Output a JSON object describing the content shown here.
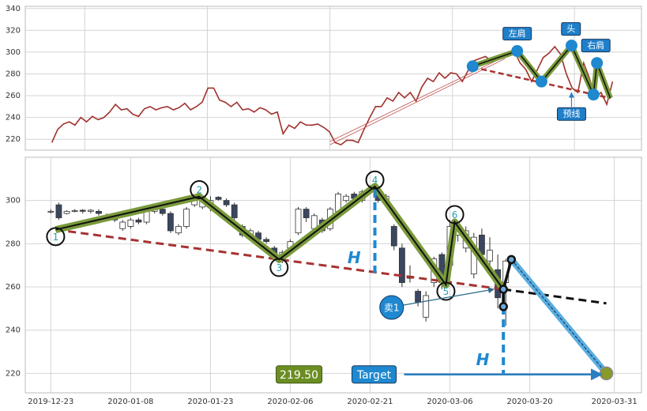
{
  "chart_data": [
    {
      "type": "line",
      "color": "#a0322e",
      "values": [
        217,
        229,
        234,
        236,
        233,
        240,
        236,
        241,
        238,
        240,
        245,
        252,
        247,
        248,
        243,
        241,
        248,
        250,
        247,
        249,
        250,
        247,
        249,
        253,
        247,
        250,
        254,
        267,
        267,
        256,
        254,
        250,
        254,
        247,
        248,
        245,
        249,
        247,
        243,
        245,
        225,
        233,
        230,
        236,
        233,
        233,
        234,
        231,
        227,
        217,
        215,
        219,
        219,
        217,
        229,
        240,
        250,
        250,
        258,
        255,
        263,
        258,
        263,
        255,
        268,
        276,
        273,
        281,
        276,
        281,
        280,
        273,
        283,
        292,
        294,
        296,
        292,
        296,
        297,
        299,
        301,
        290,
        284,
        273,
        284,
        295,
        299,
        305,
        298,
        280,
        267,
        263,
        290,
        276,
        258,
        263,
        252,
        273
      ],
      "xlim": [
        -4.6,
        102
      ],
      "xgrid": [
        5.7,
        26.9,
        48.1,
        69.3,
        90.4
      ],
      "ylim": [
        210,
        342
      ],
      "yticks": [
        220,
        240,
        260,
        280,
        300,
        320,
        340
      ],
      "grid": true,
      "pattern": {
        "x": [
          72.8,
          80.5,
          84.7,
          89.9,
          93.7,
          94.3,
          96.6
        ],
        "values": [
          287,
          301,
          273,
          306,
          261,
          290,
          257.7
        ]
      },
      "points": {
        "x": [
          72.8,
          80.5,
          84.7,
          89.9,
          93.7,
          94.3
        ],
        "values": [
          287,
          301,
          273,
          306,
          261,
          290
        ]
      },
      "neckline": {
        "x": [
          74.3,
          96.6
        ],
        "values": [
          284.4,
          257.7
        ]
      },
      "channel": {
        "x": [
          48.1,
          78.4
        ],
        "upper": [
          218,
          296
        ],
        "lower": [
          215,
          294
        ]
      },
      "annotations": [
        {
          "text": "左肩",
          "x": 80.5,
          "y": 316.9
        },
        {
          "text": "头",
          "x": 89.8,
          "y": 321.2
        },
        {
          "text": "右肩",
          "x": 94.1,
          "y": 306
        },
        {
          "text": "预线",
          "x": 89.9,
          "y": 243.2
        }
      ]
    },
    {
      "type": "candlestick",
      "x": [
        0,
        1,
        2,
        3,
        4,
        5,
        6,
        7,
        8,
        9,
        10,
        11,
        12,
        13,
        14,
        15,
        16,
        17,
        18,
        19,
        20,
        21,
        22,
        23,
        24,
        25,
        26,
        27,
        28,
        29,
        30,
        31,
        32,
        33,
        34,
        35,
        36,
        37,
        38,
        39,
        40,
        41,
        42,
        43,
        44,
        45,
        46,
        47,
        48,
        49,
        50,
        51,
        52,
        53,
        54,
        55,
        56,
        57
      ],
      "open": [
        295,
        298,
        294,
        295,
        295.5,
        295,
        295,
        293,
        292,
        287,
        288,
        291,
        290,
        295,
        296,
        294,
        285,
        288,
        298,
        297,
        297,
        301.5,
        300,
        298,
        288,
        283,
        285,
        282,
        278,
        272,
        278,
        285,
        296,
        287,
        291,
        287,
        295,
        300,
        303,
        300,
        304,
        303,
        300,
        288,
        278,
        265,
        258,
        246,
        262,
        275,
        270,
        284,
        278,
        266,
        284,
        272,
        268,
        262
      ],
      "high": [
        296,
        299,
        295.5,
        296,
        296,
        296,
        296,
        294,
        293,
        291,
        292,
        292,
        296,
        297,
        297,
        295,
        289,
        297,
        302,
        301,
        302,
        302,
        301,
        299,
        289,
        287,
        286,
        283,
        279,
        277,
        282,
        297,
        297,
        294,
        292,
        297,
        304,
        303,
        304,
        305,
        307,
        304,
        303,
        289,
        280,
        270,
        259,
        258,
        274,
        276,
        291,
        289,
        288,
        285,
        287,
        283,
        275,
        273
      ],
      "low": [
        294,
        291,
        293.5,
        294.5,
        294,
        294,
        293,
        291,
        290,
        286,
        287,
        289,
        289,
        294,
        293,
        285,
        284,
        287,
        297,
        296,
        295,
        300,
        297,
        291,
        283,
        282,
        281,
        280,
        272,
        271,
        276,
        284,
        290,
        286,
        285,
        286,
        294,
        299,
        300,
        299,
        303,
        299,
        299,
        277,
        260,
        262,
        251,
        244,
        260,
        259,
        268,
        281,
        276,
        264,
        272,
        270,
        250,
        242
      ],
      "close": [
        295,
        292,
        295,
        295.3,
        295,
        295.5,
        294,
        292,
        291,
        290,
        291,
        290,
        295,
        296,
        294,
        286,
        288,
        296,
        300,
        300,
        300,
        300.5,
        298,
        292,
        284,
        286,
        282,
        281,
        274,
        276,
        281,
        296,
        292,
        293,
        286,
        296,
        303,
        302,
        301,
        304,
        305,
        300,
        302,
        279,
        262,
        264,
        253,
        256,
        273,
        262,
        288,
        287,
        286,
        283,
        275,
        277,
        255,
        272
      ],
      "up_color": "#ffffff",
      "down_color": "#3b4660",
      "xlim": [
        -3.2,
        74
      ],
      "xticks": [
        {
          "value": 0,
          "label": "2019-12-23"
        },
        {
          "value": 10,
          "label": "2020-01-08"
        },
        {
          "value": 20,
          "label": "2020-01-23"
        },
        {
          "value": 30,
          "label": "2020-02-06"
        },
        {
          "value": 40,
          "label": "2020-02-21"
        },
        {
          "value": 50,
          "label": "2020-03-06"
        },
        {
          "value": 60,
          "label": "2020-03-20"
        },
        {
          "value": 70.6,
          "label": "2020-03-31"
        }
      ],
      "ylim": [
        211,
        320
      ],
      "yticks": [
        220,
        240,
        260,
        280,
        300
      ],
      "grid": true,
      "pattern": {
        "x": [
          0.6,
          18.6,
          28.6,
          40.6,
          49.5,
          50.6,
          56.7
        ],
        "values": [
          286.5,
          301.8,
          272.7,
          306.5,
          261,
          290,
          258.9
        ]
      },
      "points": [
        {
          "label": "1",
          "x": 0.6,
          "y": 283.3
        },
        {
          "label": "2",
          "x": 18.6,
          "y": 305
        },
        {
          "label": "3",
          "x": 28.6,
          "y": 269
        },
        {
          "label": "4",
          "x": 40.6,
          "y": 309.5
        },
        {
          "label": "5",
          "x": 49.5,
          "y": 258
        },
        {
          "label": "6",
          "x": 50.6,
          "y": 293.5
        }
      ],
      "neckline": {
        "x": [
          0.6,
          56.7
        ],
        "values": [
          286.5,
          258.9
        ]
      },
      "projection": {
        "x": [
          56.7,
          69.6
        ],
        "values": [
          258.9,
          252.4
        ]
      },
      "breakdown": {
        "x": [
          56.7,
          56.7,
          57.7
        ],
        "values": [
          250.9,
          258.9,
          272.7
        ]
      },
      "target_path": {
        "x": [
          57.7,
          69.6
        ],
        "values": [
          272.7,
          220
        ]
      },
      "heights": [
        {
          "label": "H",
          "x": 40.6,
          "values": [
            305,
            266.5
          ],
          "label_x": 38,
          "label_y": 273
        },
        {
          "label": "H",
          "x": 56.7,
          "values": [
            256.7,
            220
          ],
          "label_x": 54.1,
          "label_y": 225.8
        }
      ],
      "sell": {
        "label": "卖1",
        "x": 42.7,
        "y": 250.5,
        "to_x": 55.5,
        "to_y": 258.9
      },
      "target": {
        "label": "Target",
        "value": 219.5,
        "value_label": "219.50",
        "value_x": 31.1,
        "label_x": 40.5,
        "end_x": 69
      }
    }
  ]
}
